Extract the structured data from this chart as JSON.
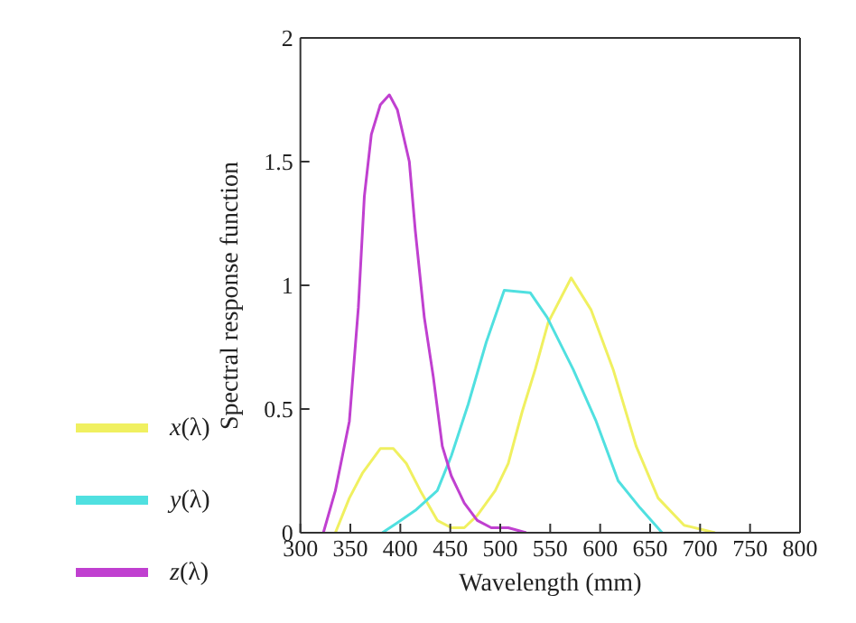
{
  "chart_data": {
    "type": "line",
    "xlabel": "Wavelength (mm)",
    "ylabel": "Spectral response function",
    "xlim": [
      300,
      800
    ],
    "xticks": [
      300,
      350,
      400,
      450,
      500,
      550,
      600,
      650,
      700,
      750,
      800
    ],
    "ylim": [
      0,
      2
    ],
    "yticks": [
      0,
      0.5,
      1,
      1.5,
      2
    ],
    "legend": "bottom left",
    "marker": "none",
    "line_style": "solid",
    "series": [
      {
        "name": "x(λ)",
        "color": "#f0f060",
        "x": [
          335,
          349,
          362,
          380,
          393,
          406,
          420,
          437,
          451,
          464,
          477,
          495,
          508,
          522,
          535,
          548,
          571,
          591,
          613,
          636,
          658,
          684,
          715
        ],
        "values": [
          0,
          0.14,
          0.24,
          0.34,
          0.34,
          0.28,
          0.17,
          0.05,
          0.02,
          0.02,
          0.07,
          0.17,
          0.28,
          0.49,
          0.66,
          0.85,
          1.03,
          0.9,
          0.66,
          0.35,
          0.14,
          0.03,
          0
        ]
      },
      {
        "name": "y(λ)",
        "color": "#50e0e0",
        "x": [
          382,
          397,
          415,
          437,
          451,
          468,
          486,
          504,
          530,
          547,
          573,
          596,
          618,
          640,
          662
        ],
        "values": [
          0,
          0.04,
          0.09,
          0.17,
          0.31,
          0.52,
          0.77,
          0.98,
          0.97,
          0.87,
          0.66,
          0.45,
          0.21,
          0.1,
          0
        ]
      },
      {
        "name": "z(λ)",
        "color": "#c040d0",
        "x": [
          323,
          335,
          349,
          358,
          364,
          371,
          380,
          389,
          397,
          409,
          415,
          424,
          433,
          442,
          451,
          464,
          477,
          491,
          508,
          526
        ],
        "values": [
          0,
          0.17,
          0.45,
          0.91,
          1.36,
          1.61,
          1.73,
          1.77,
          1.71,
          1.5,
          1.22,
          0.87,
          0.63,
          0.35,
          0.23,
          0.12,
          0.05,
          0.02,
          0.02,
          0
        ]
      }
    ]
  }
}
